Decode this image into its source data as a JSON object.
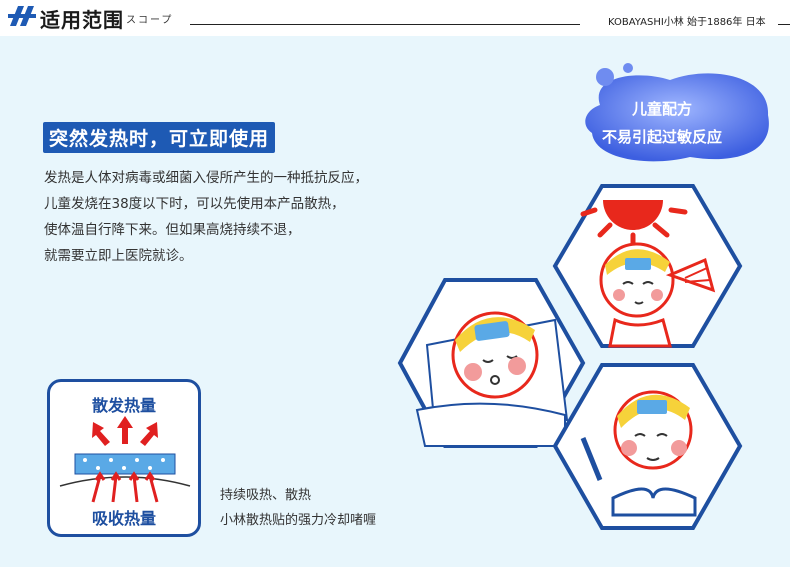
{
  "header": {
    "title": "适用范围",
    "subtitle": "スコープ",
    "brand_line": "KOBAYASHI小林 始于1886年 日本"
  },
  "headline": "突然发热时，可立即使用",
  "paragraph": [
    "发热是人体对病毒或细菌入侵所产生的一种抵抗反应，",
    "儿童发烧在38度以下时，可以先使用本产品散热，",
    "使体温自行降下来。但如果高烧持续不退，",
    "就需要立即上医院就诊。"
  ],
  "badge": {
    "line1": "儿童配方",
    "line2": "不易引起过敏反应"
  },
  "diagram": {
    "top_label": "散发热量",
    "bottom_label": "吸收热量"
  },
  "caption": {
    "line1": "持续吸热、散热",
    "line2": "小林散热贴的强力冷却啫喱"
  },
  "colors": {
    "brand_blue": "#1e4fa0",
    "background": "#e8f6fc",
    "heat_red": "#e02020",
    "gel_blue": "#5aa9e6"
  },
  "illustrations": [
    "child-with-sun-and-fan",
    "child-sleeping-with-pillow",
    "child-studying-with-book"
  ]
}
